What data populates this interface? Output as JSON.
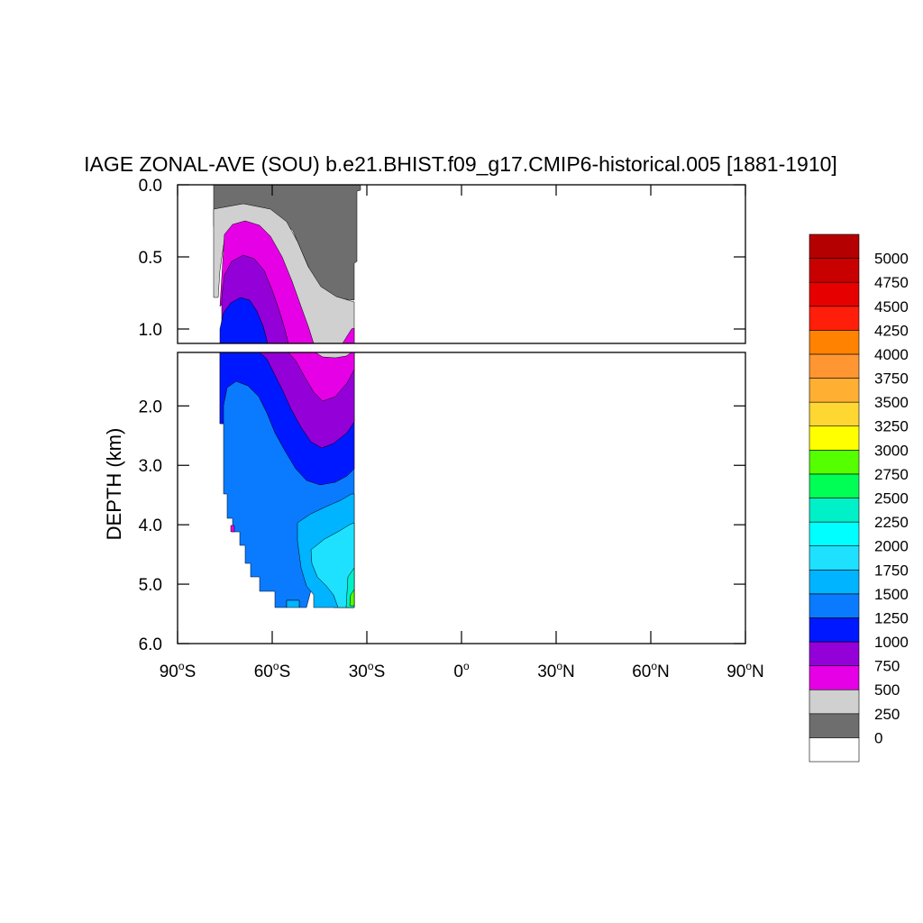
{
  "chart_data": {
    "type": "heatmap",
    "title": "IAGE ZONAL-AVE (SOU) b.e21.BHIST.f09_g17.CMIP6-historical.005 [1881-1910]",
    "ylabel": "DEPTH (km)",
    "xlabel": "",
    "x_ticks": [
      {
        "value": -90,
        "deg": "90",
        "hemi": "S"
      },
      {
        "value": -60,
        "deg": "60",
        "hemi": "S"
      },
      {
        "value": -30,
        "deg": "30",
        "hemi": "S"
      },
      {
        "value": 0,
        "deg": "0",
        "hemi": ""
      },
      {
        "value": 30,
        "deg": "30",
        "hemi": "N"
      },
      {
        "value": 60,
        "deg": "60",
        "hemi": "N"
      },
      {
        "value": 90,
        "deg": "90",
        "hemi": "N"
      }
    ],
    "xlim": [
      -90,
      90
    ],
    "upper_panel": {
      "ylim": [
        0.0,
        1.1
      ],
      "y_ticks": [
        "0.0",
        "0.5",
        "1.0"
      ],
      "y_tick_values": [
        0.0,
        0.5,
        1.0
      ]
    },
    "lower_panel": {
      "ylim": [
        1.1,
        6.0
      ],
      "y_ticks": [
        "2.0",
        "3.0",
        "4.0",
        "5.0",
        "6.0"
      ],
      "y_tick_values": [
        2.0,
        3.0,
        4.0,
        5.0,
        6.0
      ]
    },
    "colorbar": {
      "labels": [
        "0",
        "250",
        "500",
        "750",
        "1000",
        "1250",
        "1500",
        "1750",
        "2000",
        "2250",
        "2500",
        "2750",
        "3000",
        "3250",
        "3500",
        "3750",
        "4000",
        "4250",
        "4500",
        "4750",
        "5000"
      ],
      "colors": [
        "#ffffff",
        "#6e6e6e",
        "#d0d0d0",
        "#e600e6",
        "#9400d8",
        "#0018ff",
        "#0a7bff",
        "#00b4ff",
        "#1ee1ff",
        "#00ffff",
        "#00f0c8",
        "#00ff55",
        "#55ff00",
        "#ffff00",
        "#ffd732",
        "#ffaf32",
        "#ff9632",
        "#ff8200",
        "#ff1e0a",
        "#e60000",
        "#c80000",
        "#b40000"
      ]
    },
    "field_bands": [
      {
        "level": "250-500",
        "color": "#6e6e6e"
      },
      {
        "level": "500-750",
        "color": "#d0d0d0"
      },
      {
        "level": "750-1000",
        "color": "#e600e6"
      },
      {
        "level": "1000-1250",
        "color": "#9400d8"
      },
      {
        "level": "1250-1500",
        "color": "#0018ff"
      },
      {
        "level": "1500-1750",
        "color": "#0a7bff"
      },
      {
        "level": "1750-2000",
        "color": "#00b4ff"
      },
      {
        "level": "2000-2250",
        "color": "#1ee1ff"
      }
    ]
  }
}
